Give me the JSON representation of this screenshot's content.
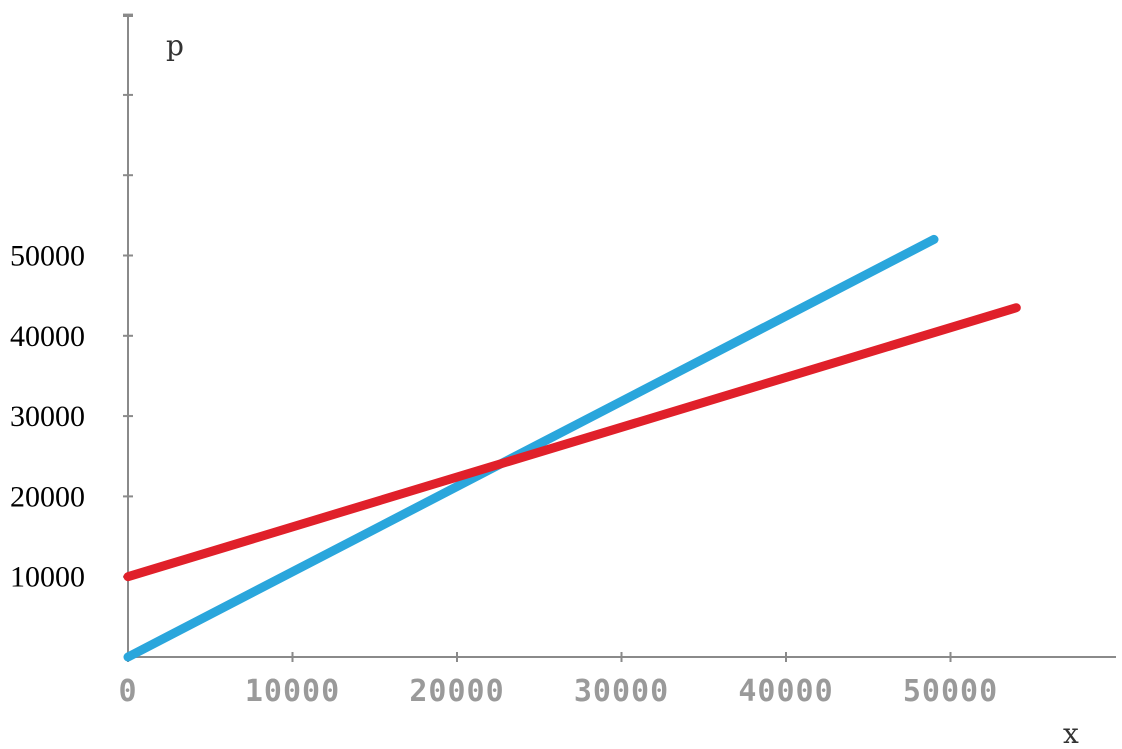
{
  "chart_data": {
    "type": "line",
    "title": "",
    "xlabel": "x",
    "ylabel": "p",
    "xlim": [
      0,
      60000
    ],
    "ylim": [
      0,
      80000
    ],
    "x_ticks": [
      0,
      10000,
      20000,
      30000,
      40000,
      50000
    ],
    "x_tick_labels": [
      "0",
      "10000",
      "20000",
      "30000",
      "40000",
      "50000"
    ],
    "y_ticks": [
      10000,
      20000,
      30000,
      40000,
      50000,
      60000,
      70000,
      80000
    ],
    "y_tick_labels": [
      "10000",
      "20000",
      "30000",
      "40000",
      "50000",
      "",
      "",
      ""
    ],
    "grid": false,
    "series": [
      {
        "color": "#2aa6dc",
        "x": [
          0,
          49000
        ],
        "y": [
          0,
          52000
        ]
      },
      {
        "color": "#e0202a",
        "x": [
          0,
          54000
        ],
        "y": [
          10000,
          43500
        ]
      }
    ]
  }
}
